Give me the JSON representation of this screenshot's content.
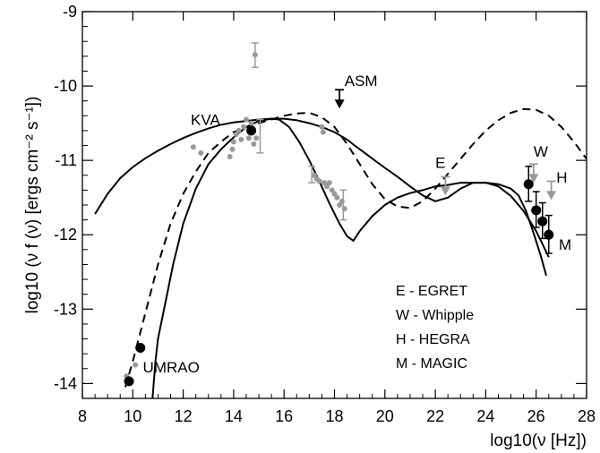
{
  "chart_data": {
    "type": "scatter",
    "xlabel": "log10(ν [Hz])",
    "ylabel": "log10 (ν f (ν) [ergs cm⁻² s⁻¹])",
    "xlim": [
      8,
      28
    ],
    "ylim": [
      -14.2,
      -9
    ],
    "x_ticks": [
      8,
      10,
      12,
      14,
      16,
      18,
      20,
      22,
      24,
      26,
      28
    ],
    "y_ticks": [
      -14,
      -13,
      -12,
      -11,
      -10,
      -9
    ],
    "x_tick_labels": [
      "8",
      "10",
      "12",
      "14",
      "16",
      "18",
      "20",
      "22",
      "24",
      "26",
      "28"
    ],
    "y_tick_labels": [
      "-14",
      "-13",
      "-12",
      "-11",
      "-10",
      "-9"
    ],
    "grid": false,
    "colors": {
      "black": "#000000",
      "gray": "#999999",
      "gray_light": "#b5b5b5"
    },
    "annotations": [
      {
        "text": "UMRAO",
        "x": 10.4,
        "y": -13.85
      },
      {
        "text": "KVA",
        "x": 12.3,
        "y": -10.52
      },
      {
        "text": "ASM",
        "x": 18.4,
        "y": -10.0
      },
      {
        "text": "E",
        "x": 22.0,
        "y": -11.1
      },
      {
        "text": "W",
        "x": 25.9,
        "y": -10.95
      },
      {
        "text": "H",
        "x": 26.8,
        "y": -11.3
      },
      {
        "text": "M",
        "x": 26.9,
        "y": -12.2
      }
    ],
    "legend": {
      "placement": "bottom-right",
      "entries": [
        "E - EGRET",
        "W - Whipple",
        "H - HEGRA",
        "M - MAGIC"
      ]
    },
    "black_points": [
      {
        "x": 9.85,
        "y": -13.97
      },
      {
        "x": 10.3,
        "y": -13.52
      },
      {
        "x": 14.7,
        "y": -10.6
      },
      {
        "x": 25.7,
        "y": -11.32
      },
      {
        "x": 26.0,
        "y": -11.67
      },
      {
        "x": 26.25,
        "y": -11.82
      },
      {
        "x": 26.5,
        "y": -12.0
      }
    ],
    "black_error_bars": [
      {
        "x": 25.7,
        "low": -11.55,
        "high": -11.08
      },
      {
        "x": 26.0,
        "low": -11.9,
        "high": -11.42
      },
      {
        "x": 26.25,
        "low": -12.05,
        "high": -11.57
      },
      {
        "x": 26.5,
        "low": -12.25,
        "high": -11.74
      }
    ],
    "gray_points": [
      {
        "x": 9.75,
        "y": -13.9
      },
      {
        "x": 10.1,
        "y": -13.75
      },
      {
        "x": 12.4,
        "y": -10.82
      },
      {
        "x": 12.7,
        "y": -10.9
      },
      {
        "x": 13.85,
        "y": -10.95
      },
      {
        "x": 13.95,
        "y": -10.85
      },
      {
        "x": 14.0,
        "y": -10.75
      },
      {
        "x": 14.1,
        "y": -10.65
      },
      {
        "x": 14.2,
        "y": -10.6
      },
      {
        "x": 14.3,
        "y": -10.72
      },
      {
        "x": 14.4,
        "y": -10.55
      },
      {
        "x": 14.5,
        "y": -10.45
      },
      {
        "x": 14.6,
        "y": -10.7
      },
      {
        "x": 14.7,
        "y": -10.5
      },
      {
        "x": 14.8,
        "y": -10.78
      },
      {
        "x": 14.85,
        "y": -9.58
      },
      {
        "x": 14.9,
        "y": -10.7
      },
      {
        "x": 17.2,
        "y": -11.2
      },
      {
        "x": 17.3,
        "y": -11.25
      },
      {
        "x": 17.4,
        "y": -11.28
      },
      {
        "x": 17.5,
        "y": -10.55
      },
      {
        "x": 17.55,
        "y": -10.62
      },
      {
        "x": 17.6,
        "y": -11.3
      },
      {
        "x": 17.7,
        "y": -11.35
      },
      {
        "x": 17.8,
        "y": -11.3
      },
      {
        "x": 17.9,
        "y": -11.4
      },
      {
        "x": 18.0,
        "y": -11.45
      },
      {
        "x": 18.1,
        "y": -11.5
      },
      {
        "x": 18.2,
        "y": -11.6
      },
      {
        "x": 18.3,
        "y": -11.55
      },
      {
        "x": 18.4,
        "y": -11.65
      }
    ],
    "gray_error_bars": [
      {
        "x": 14.85,
        "low": -9.75,
        "high": -9.42
      },
      {
        "x": 15.05,
        "low": -10.9,
        "high": -10.45
      },
      {
        "x": 17.1,
        "low": -11.3,
        "high": -11.08
      },
      {
        "x": 18.35,
        "low": -11.8,
        "high": -11.4
      }
    ],
    "upper_limits": [
      {
        "name": "ASM",
        "x": 18.2,
        "y": -10.05,
        "color": "#000000"
      },
      {
        "name": "EGRET",
        "x": 22.4,
        "y": -11.22,
        "color": "#999999"
      },
      {
        "x": 25.9,
        "y": -11.05,
        "color": "#999999"
      },
      {
        "x": 26.6,
        "y": -11.28,
        "color": "#999999"
      }
    ],
    "series": [
      {
        "style": "solid",
        "x": [
          8.5,
          9.0,
          9.5,
          10.0,
          10.5,
          11.0,
          11.5,
          12.0,
          12.5,
          13.0,
          13.5,
          14.0,
          14.5,
          15.0,
          15.5,
          16.0,
          16.5,
          17.0,
          17.5,
          18.0,
          18.5,
          18.8,
          19.2,
          19.6,
          20.0,
          20.5,
          21.0,
          21.5,
          22.0,
          22.5,
          23.0,
          23.5,
          24.0,
          24.5,
          25.0,
          25.5,
          26.0,
          26.5
        ],
        "y": [
          -11.72,
          -11.45,
          -11.24,
          -11.09,
          -10.97,
          -10.87,
          -10.78,
          -10.7,
          -10.63,
          -10.57,
          -10.52,
          -10.49,
          -10.47,
          -10.45,
          -10.44,
          -10.44,
          -10.46,
          -10.5,
          -10.55,
          -10.62,
          -10.72,
          -10.8,
          -10.9,
          -11.0,
          -11.1,
          -11.22,
          -11.35,
          -11.47,
          -11.55,
          -11.5,
          -11.38,
          -11.3,
          -11.3,
          -11.35,
          -11.48,
          -11.68,
          -11.95,
          -12.3
        ]
      },
      {
        "style": "solid",
        "x": [
          10.78,
          10.9,
          11.0,
          11.3,
          11.6,
          12.0,
          12.5,
          13.0,
          13.5,
          14.0,
          14.5,
          15.0,
          15.5,
          15.8,
          16.2,
          16.6,
          17.0,
          17.4,
          17.8,
          18.2,
          18.5,
          18.75,
          19.0,
          19.5,
          20.0,
          20.5,
          21.0,
          21.5,
          22.0,
          22.5,
          23.0,
          23.5,
          24.0,
          24.5,
          25.0,
          25.3,
          25.6,
          25.9,
          26.2,
          26.4
        ],
        "y": [
          -14.2,
          -13.7,
          -13.4,
          -12.9,
          -12.4,
          -11.85,
          -11.38,
          -11.05,
          -10.85,
          -10.69,
          -10.55,
          -10.47,
          -10.44,
          -10.45,
          -10.55,
          -10.75,
          -11.0,
          -11.28,
          -11.58,
          -11.85,
          -12.02,
          -12.08,
          -11.95,
          -11.75,
          -11.6,
          -11.5,
          -11.44,
          -11.4,
          -11.35,
          -11.33,
          -11.3,
          -11.3,
          -11.3,
          -11.32,
          -11.38,
          -11.47,
          -11.68,
          -11.98,
          -12.3,
          -12.55
        ]
      },
      {
        "style": "dashed",
        "x": [
          9.7,
          10.0,
          10.5,
          11.0,
          11.5,
          12.0,
          12.5,
          13.0,
          13.5,
          14.0,
          14.5,
          15.0,
          15.5,
          16.0,
          16.5,
          17.0,
          17.5,
          18.0,
          18.5,
          19.0,
          19.5,
          20.0,
          20.5,
          21.0,
          21.5,
          22.0,
          22.5,
          23.0,
          23.5,
          24.0,
          24.5,
          25.0,
          25.5,
          26.0,
          26.5,
          27.0,
          27.5,
          28.0
        ],
        "y": [
          -14.05,
          -13.7,
          -13.05,
          -12.4,
          -11.85,
          -11.45,
          -11.15,
          -10.9,
          -10.75,
          -10.62,
          -10.55,
          -10.5,
          -10.45,
          -10.4,
          -10.37,
          -10.36,
          -10.42,
          -10.55,
          -10.78,
          -11.05,
          -11.32,
          -11.52,
          -11.62,
          -11.64,
          -11.55,
          -11.38,
          -11.18,
          -10.98,
          -10.78,
          -10.6,
          -10.46,
          -10.36,
          -10.31,
          -10.32,
          -10.4,
          -10.55,
          -10.75,
          -10.98
        ]
      }
    ]
  }
}
